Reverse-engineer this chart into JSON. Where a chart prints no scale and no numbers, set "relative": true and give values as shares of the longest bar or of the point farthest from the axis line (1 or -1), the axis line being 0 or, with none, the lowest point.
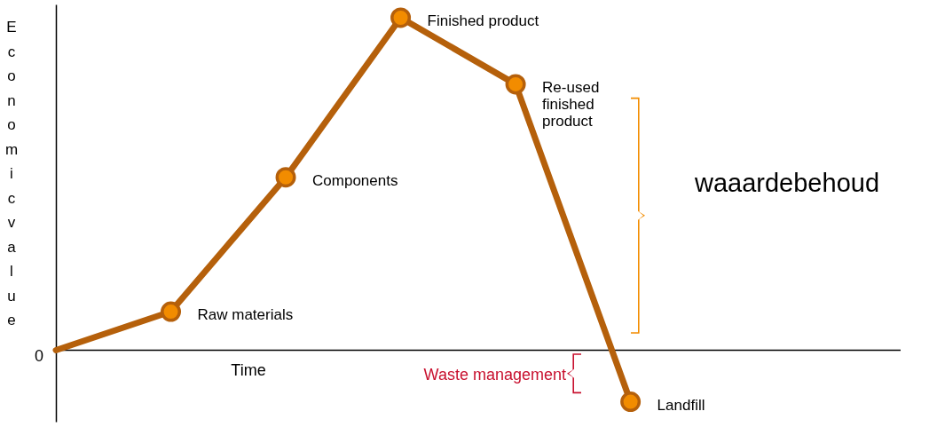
{
  "chart_data": {
    "type": "line",
    "relative": true,
    "xlabel": "Time",
    "ylabel": "Economic value",
    "categories": [
      null,
      null,
      null,
      null,
      null,
      null
    ],
    "series": [
      {
        "color": "#b5600b",
        "values": [
          0,
          0.116,
          0.52,
          1,
          0.8,
          -0.155
        ]
      }
    ],
    "value_labels": [
      null,
      "Raw materials",
      "Components",
      "Finished product",
      "Re-used finished product",
      "Landfill"
    ],
    "marker": "circle",
    "line_style": "solid",
    "grid": false,
    "annotations": [
      "waaardebehoud",
      "Waste management",
      "0"
    ]
  }
}
